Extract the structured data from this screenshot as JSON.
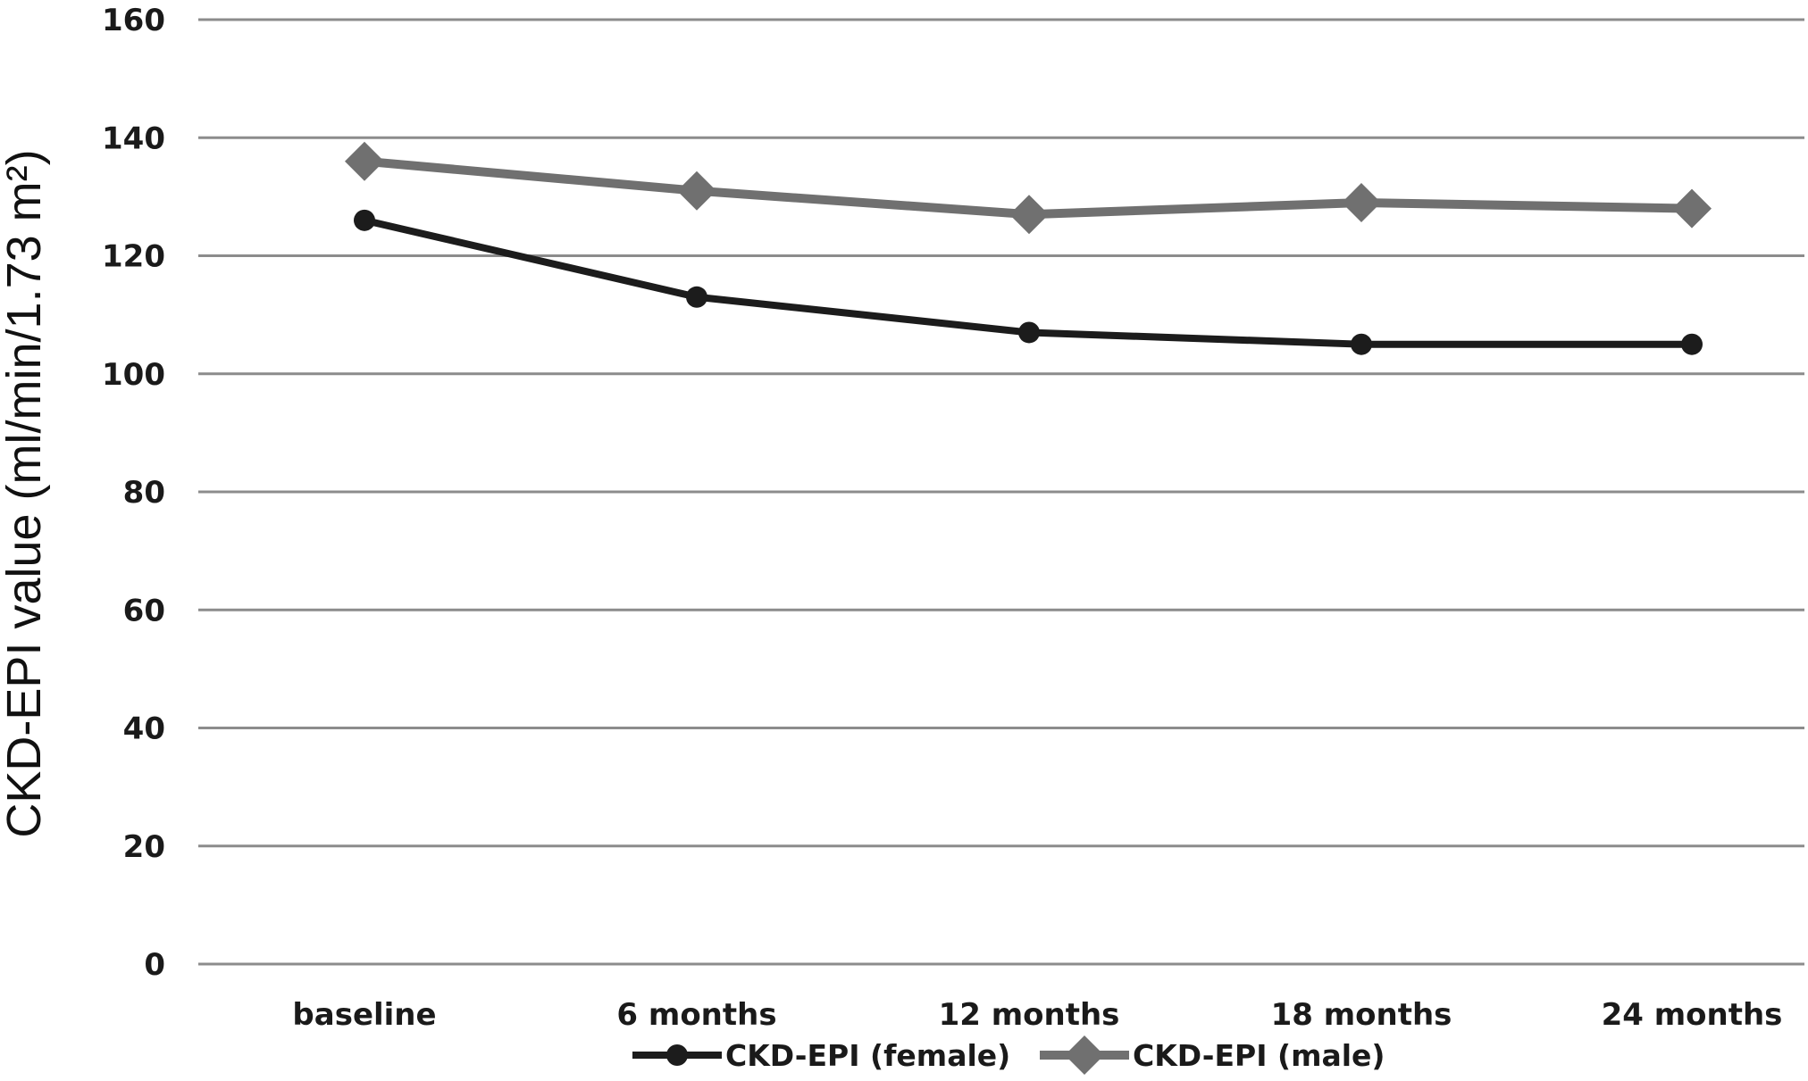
{
  "chart_data": {
    "type": "line",
    "title": "",
    "xlabel": "",
    "ylabel": "CKD-EPI value (ml/min/1.73 m²)",
    "ylim": [
      0,
      160
    ],
    "yticks": [
      0,
      20,
      40,
      60,
      80,
      100,
      120,
      140,
      160
    ],
    "grid": true,
    "legend_position": "bottom",
    "categories": [
      "baseline",
      "6 months",
      "12 months",
      "18 months",
      "24 months"
    ],
    "series": [
      {
        "name": "CKD-EPI (female)",
        "values": [
          126,
          113,
          107,
          105,
          105
        ],
        "color": "#1c1c1c",
        "marker": "circle"
      },
      {
        "name": "CKD-EPI (male)",
        "values": [
          136,
          131,
          127,
          129,
          128
        ],
        "color": "#707070",
        "marker": "diamond"
      }
    ]
  }
}
